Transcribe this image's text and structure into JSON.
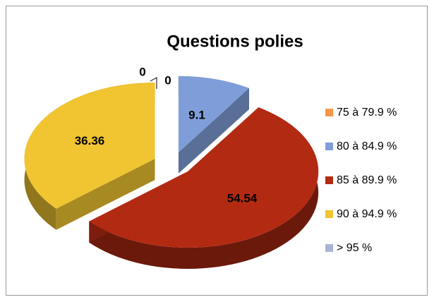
{
  "chart_data": {
    "type": "pie3d",
    "title": "Questions polies",
    "categories": [
      "75 à 79.9 %",
      "80 à 84.9 %",
      "85 à 89.9 %",
      "90 à 94.9 %",
      "> 95 %"
    ],
    "values": [
      0,
      9.1,
      54.54,
      36.36,
      0
    ],
    "colors": [
      "#f79646",
      "#7f9ed9",
      "#b32a12",
      "#f0c531",
      "#aab3d3"
    ],
    "legend": "right"
  }
}
